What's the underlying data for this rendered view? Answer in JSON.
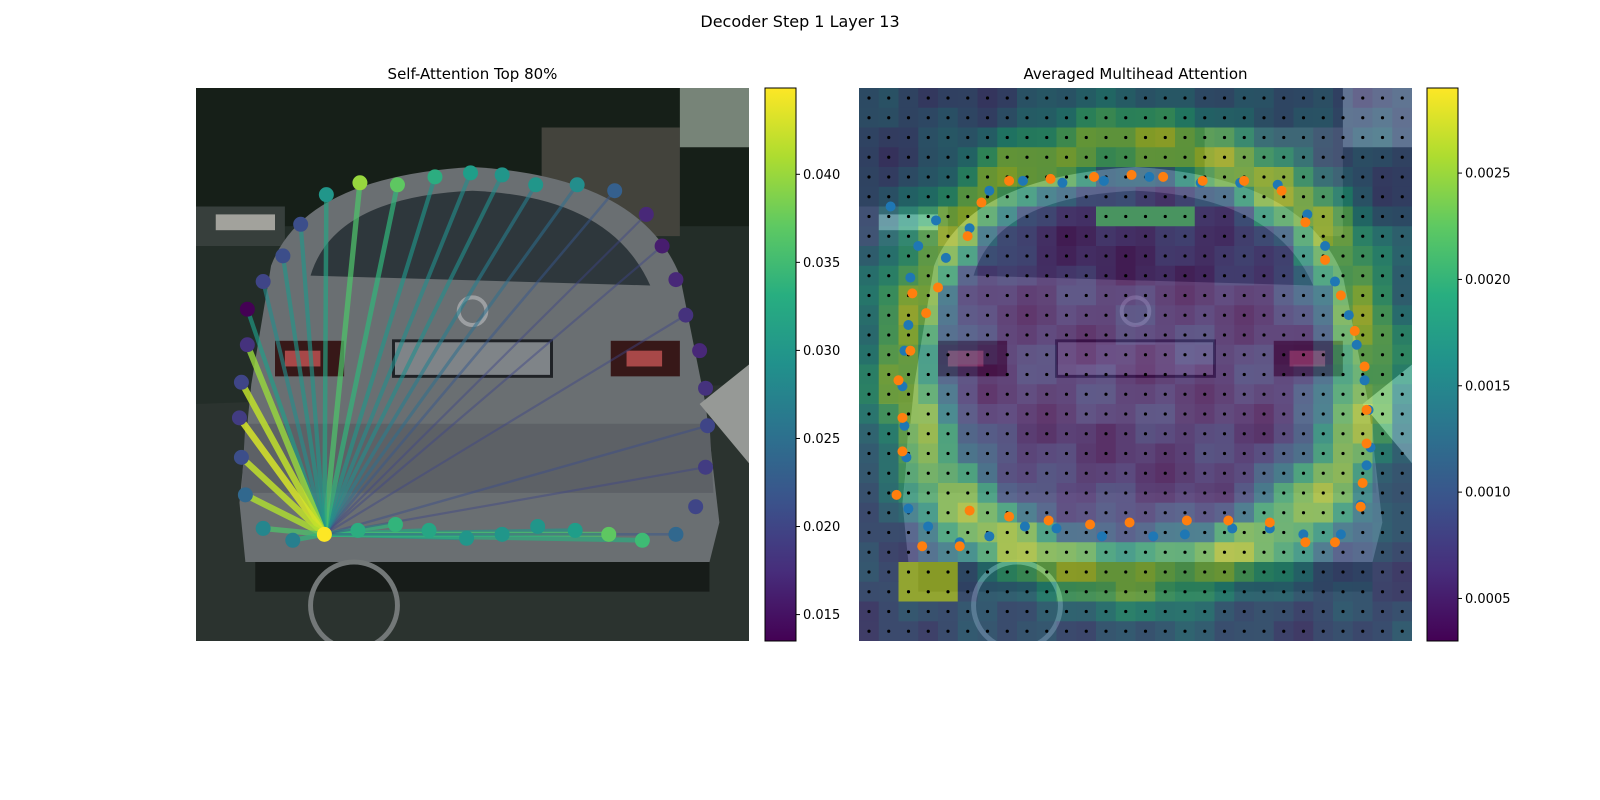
{
  "figure": {
    "title": "Decoder Step 1 Layer 13"
  },
  "chart_data": [
    {
      "type": "scatter",
      "title": "Self-Attention Top 80%",
      "xlim": [
        0,
        280
      ],
      "ylim": [
        280,
        0
      ],
      "background": "photo: rear of a silver car with a license plate",
      "colormap": "viridis",
      "colorbar": {
        "min": 0.0135,
        "max": 0.0449,
        "ticks": [
          "0.015",
          "0.020",
          "0.025",
          "0.030",
          "0.035",
          "0.040"
        ],
        "tick_values": [
          0.015,
          0.02,
          0.025,
          0.03,
          0.035,
          0.04
        ]
      },
      "query_index": 0,
      "points": [
        {
          "x": 65,
          "y": 226,
          "v": 0.0449
        },
        {
          "x": 82,
          "y": 224,
          "v": 0.033
        },
        {
          "x": 101,
          "y": 221,
          "v": 0.034
        },
        {
          "x": 118,
          "y": 224,
          "v": 0.032
        },
        {
          "x": 137,
          "y": 228,
          "v": 0.03
        },
        {
          "x": 155,
          "y": 226,
          "v": 0.03
        },
        {
          "x": 173,
          "y": 222,
          "v": 0.03
        },
        {
          "x": 192,
          "y": 224,
          "v": 0.031
        },
        {
          "x": 209,
          "y": 226,
          "v": 0.037
        },
        {
          "x": 226,
          "y": 229,
          "v": 0.035
        },
        {
          "x": 243,
          "y": 226,
          "v": 0.024
        },
        {
          "x": 253,
          "y": 212,
          "v": 0.02
        },
        {
          "x": 258,
          "y": 192,
          "v": 0.019
        },
        {
          "x": 259,
          "y": 171,
          "v": 0.02
        },
        {
          "x": 258,
          "y": 152,
          "v": 0.018
        },
        {
          "x": 255,
          "y": 133,
          "v": 0.017
        },
        {
          "x": 248,
          "y": 115,
          "v": 0.018
        },
        {
          "x": 243,
          "y": 97,
          "v": 0.017
        },
        {
          "x": 236,
          "y": 80,
          "v": 0.016
        },
        {
          "x": 228,
          "y": 64,
          "v": 0.017
        },
        {
          "x": 212,
          "y": 52,
          "v": 0.023
        },
        {
          "x": 193,
          "y": 49,
          "v": 0.029
        },
        {
          "x": 172,
          "y": 49,
          "v": 0.03
        },
        {
          "x": 155,
          "y": 44,
          "v": 0.03
        },
        {
          "x": 139,
          "y": 43,
          "v": 0.031
        },
        {
          "x": 121,
          "y": 45,
          "v": 0.033
        },
        {
          "x": 102,
          "y": 49,
          "v": 0.037
        },
        {
          "x": 83,
          "y": 48,
          "v": 0.04
        },
        {
          "x": 66,
          "y": 54,
          "v": 0.03
        },
        {
          "x": 53,
          "y": 69,
          "v": 0.021
        },
        {
          "x": 44,
          "y": 85,
          "v": 0.021
        },
        {
          "x": 34,
          "y": 98,
          "v": 0.02
        },
        {
          "x": 26,
          "y": 112,
          "v": 0.0135
        },
        {
          "x": 26,
          "y": 130,
          "v": 0.018
        },
        {
          "x": 23,
          "y": 149,
          "v": 0.02
        },
        {
          "x": 22,
          "y": 167,
          "v": 0.019
        },
        {
          "x": 23,
          "y": 187,
          "v": 0.021
        },
        {
          "x": 25,
          "y": 206,
          "v": 0.024
        },
        {
          "x": 34,
          "y": 223,
          "v": 0.028
        },
        {
          "x": 49,
          "y": 229,
          "v": 0.027
        }
      ],
      "edges": [
        {
          "to": 1,
          "v": 0.033
        },
        {
          "to": 2,
          "v": 0.034
        },
        {
          "to": 3,
          "v": 0.032
        },
        {
          "to": 4,
          "v": 0.03
        },
        {
          "to": 5,
          "v": 0.03
        },
        {
          "to": 7,
          "v": 0.03
        },
        {
          "to": 8,
          "v": 0.036
        },
        {
          "to": 9,
          "v": 0.033
        },
        {
          "to": 10,
          "v": 0.022
        },
        {
          "to": 12,
          "v": 0.02
        },
        {
          "to": 13,
          "v": 0.021
        },
        {
          "to": 16,
          "v": 0.02
        },
        {
          "to": 18,
          "v": 0.02
        },
        {
          "to": 19,
          "v": 0.02
        },
        {
          "to": 20,
          "v": 0.022
        },
        {
          "to": 21,
          "v": 0.025
        },
        {
          "to": 22,
          "v": 0.027
        },
        {
          "to": 23,
          "v": 0.029
        },
        {
          "to": 24,
          "v": 0.029
        },
        {
          "to": 25,
          "v": 0.03
        },
        {
          "to": 26,
          "v": 0.034
        },
        {
          "to": 27,
          "v": 0.036
        },
        {
          "to": 28,
          "v": 0.032
        },
        {
          "to": 29,
          "v": 0.03
        },
        {
          "to": 30,
          "v": 0.03
        },
        {
          "to": 31,
          "v": 0.029
        },
        {
          "to": 32,
          "v": 0.031
        },
        {
          "to": 33,
          "v": 0.04
        },
        {
          "to": 34,
          "v": 0.042
        },
        {
          "to": 35,
          "v": 0.043
        },
        {
          "to": 36,
          "v": 0.042
        },
        {
          "to": 37,
          "v": 0.041
        },
        {
          "to": 38,
          "v": 0.036
        },
        {
          "to": 39,
          "v": 0.034
        }
      ]
    },
    {
      "type": "heatmap",
      "title": "Averaged Multihead Attention",
      "xlim": [
        0,
        280
      ],
      "ylim": [
        280,
        0
      ],
      "background": "photo: rear of a silver car with a license plate",
      "colormap": "viridis",
      "colorbar": {
        "min": 0.0003,
        "max": 0.0029,
        "ticks": [
          "0.0005",
          "0.0010",
          "0.0015",
          "0.0020",
          "0.0025"
        ],
        "tick_values": [
          0.0005,
          0.001,
          0.0015,
          0.002,
          0.0025
        ]
      },
      "grid": {
        "cols": 28,
        "rows": 28
      },
      "series": [
        {
          "color": "#1f77b4",
          "points": [
            [
              16,
              60
            ],
            [
              66,
              52
            ],
            [
              83,
              47
            ],
            [
              103,
              48
            ],
            [
              124,
              47
            ],
            [
              147,
              45
            ],
            [
              173,
              48
            ],
            [
              193,
              48
            ],
            [
              212,
              49
            ],
            [
              227,
              64
            ],
            [
              236,
              80
            ],
            [
              241,
              98
            ],
            [
              248,
              115
            ],
            [
              252,
              130
            ],
            [
              256,
              148
            ],
            [
              258,
              163
            ],
            [
              259,
              182
            ],
            [
              257,
              191
            ],
            [
              254,
              211
            ],
            [
              244,
              226
            ],
            [
              225,
              226
            ],
            [
              208,
              223
            ],
            [
              189,
              223
            ],
            [
              165,
              226
            ],
            [
              149,
              227
            ],
            [
              123,
              227
            ],
            [
              100,
              223
            ],
            [
              84,
              222
            ],
            [
              66,
              227
            ],
            [
              51,
              230
            ],
            [
              35,
              222
            ],
            [
              25,
              213
            ],
            [
              24,
              187
            ],
            [
              23,
              171
            ],
            [
              22,
              151
            ],
            [
              23,
              133
            ],
            [
              25,
              120
            ],
            [
              26,
              96
            ],
            [
              30,
              80
            ],
            [
              39,
              67
            ],
            [
              44,
              86
            ],
            [
              56,
              71
            ]
          ]
        },
        {
          "color": "#ff7f0e",
          "points": [
            [
              62,
              58
            ],
            [
              76,
              47
            ],
            [
              97,
              46
            ],
            [
              119,
              45
            ],
            [
              138,
              44
            ],
            [
              154,
              45
            ],
            [
              174,
              47
            ],
            [
              195,
              47
            ],
            [
              214,
              52
            ],
            [
              226,
              68
            ],
            [
              236,
              87
            ],
            [
              244,
              105
            ],
            [
              251,
              123
            ],
            [
              256,
              141
            ],
            [
              257,
              163
            ],
            [
              257,
              180
            ],
            [
              255,
              200
            ],
            [
              254,
              212
            ],
            [
              241,
              230
            ],
            [
              226,
              230
            ],
            [
              208,
              220
            ],
            [
              187,
              219
            ],
            [
              166,
              219
            ],
            [
              137,
              220
            ],
            [
              117,
              221
            ],
            [
              96,
              219
            ],
            [
              76,
              217
            ],
            [
              56,
              214
            ],
            [
              32,
              232
            ],
            [
              51,
              232
            ],
            [
              19,
              206
            ],
            [
              22,
              184
            ],
            [
              22,
              167
            ],
            [
              20,
              148
            ],
            [
              26,
              133
            ],
            [
              34,
              114
            ],
            [
              40,
              101
            ],
            [
              27,
              104
            ],
            [
              55,
              75
            ]
          ]
        }
      ]
    }
  ]
}
